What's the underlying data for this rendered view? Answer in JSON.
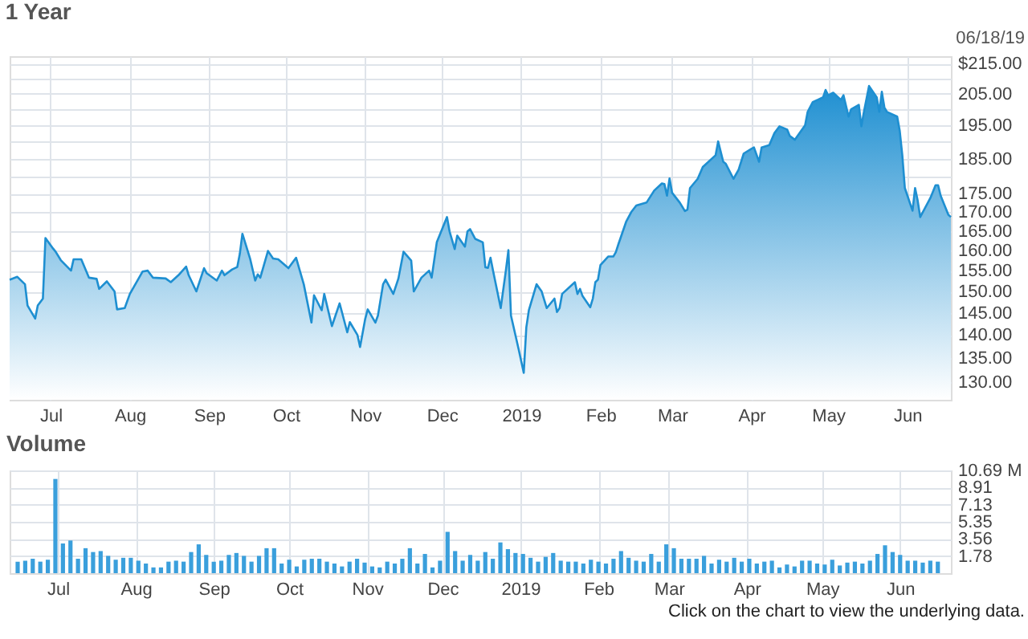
{
  "chart_data": [
    {
      "type": "area",
      "title": "1 Year",
      "color": "#1e8fd1",
      "log": true,
      "grid": true,
      "annotations": [
        "06/18/19"
      ],
      "x": [
        "2018-06-15",
        "2018-06-18",
        "2018-06-21",
        "2018-06-22",
        "2018-06-25",
        "2018-06-26",
        "2018-06-28",
        "2018-06-29",
        "2018-07-02",
        "2018-07-03",
        "2018-07-05",
        "2018-07-09",
        "2018-07-10",
        "2018-07-13",
        "2018-07-16",
        "2018-07-19",
        "2018-07-20",
        "2018-07-23",
        "2018-07-26",
        "2018-07-27",
        "2018-07-30",
        "2018-08-01",
        "2018-08-06",
        "2018-08-08",
        "2018-08-10",
        "2018-08-15",
        "2018-08-17",
        "2018-08-20",
        "2018-08-23",
        "2018-08-24",
        "2018-08-27",
        "2018-08-30",
        "2018-08-31",
        "2018-09-04",
        "2018-09-06",
        "2018-09-07",
        "2018-09-10",
        "2018-09-12",
        "2018-09-13",
        "2018-09-14",
        "2018-09-17",
        "2018-09-19",
        "2018-09-20",
        "2018-09-21",
        "2018-09-24",
        "2018-09-26",
        "2018-09-28",
        "2018-10-02",
        "2018-10-05",
        "2018-10-08",
        "2018-10-11",
        "2018-10-12",
        "2018-10-15",
        "2018-10-16",
        "2018-10-19",
        "2018-10-22",
        "2018-10-23",
        "2018-10-25",
        "2018-10-26",
        "2018-10-29",
        "2018-10-30",
        "2018-11-01",
        "2018-11-02",
        "2018-11-05",
        "2018-11-06",
        "2018-11-08",
        "2018-11-09",
        "2018-11-12",
        "2018-11-14",
        "2018-11-16",
        "2018-11-19",
        "2018-11-20",
        "2018-11-23",
        "2018-11-26",
        "2018-11-27",
        "2018-11-29",
        "2018-12-03",
        "2018-12-04",
        "2018-12-06",
        "2018-12-07",
        "2018-12-10",
        "2018-12-11",
        "2018-12-12",
        "2018-12-14",
        "2018-12-17",
        "2018-12-18",
        "2018-12-19",
        "2018-12-20",
        "2018-12-21",
        "2018-12-24",
        "2018-12-26",
        "2018-12-27",
        "2018-12-28",
        "2018-12-31",
        "2019-01-02",
        "2019-01-03",
        "2019-01-04",
        "2019-01-07",
        "2019-01-09",
        "2019-01-11",
        "2019-01-14",
        "2019-01-15",
        "2019-01-16",
        "2019-01-17",
        "2019-01-22",
        "2019-01-23",
        "2019-01-24",
        "2019-01-25",
        "2019-01-28",
        "2019-01-29",
        "2019-01-30",
        "2019-01-31",
        "2019-02-01",
        "2019-02-04",
        "2019-02-06",
        "2019-02-07",
        "2019-02-08",
        "2019-02-11",
        "2019-02-13",
        "2019-02-15",
        "2019-02-19",
        "2019-02-22",
        "2019-02-25",
        "2019-02-26",
        "2019-02-27",
        "2019-02-28",
        "2019-03-01",
        "2019-03-04",
        "2019-03-06",
        "2019-03-07",
        "2019-03-08",
        "2019-03-11",
        "2019-03-13",
        "2019-03-18",
        "2019-03-19",
        "2019-03-21",
        "2019-03-22",
        "2019-03-25",
        "2019-03-27",
        "2019-03-29",
        "2019-04-01",
        "2019-04-02",
        "2019-04-04",
        "2019-04-05",
        "2019-04-08",
        "2019-04-10",
        "2019-04-12",
        "2019-04-15",
        "2019-04-16",
        "2019-04-18",
        "2019-04-22",
        "2019-04-23",
        "2019-04-25",
        "2019-04-29",
        "2019-04-30",
        "2019-05-01",
        "2019-05-03",
        "2019-05-06",
        "2019-05-07",
        "2019-05-09",
        "2019-05-10",
        "2019-05-13",
        "2019-05-14",
        "2019-05-15",
        "2019-05-17",
        "2019-05-20",
        "2019-05-21",
        "2019-05-22",
        "2019-05-23",
        "2019-05-24",
        "2019-05-28",
        "2019-05-29",
        "2019-05-30",
        "2019-05-31",
        "2019-06-03",
        "2019-06-04",
        "2019-06-05",
        "2019-06-06",
        "2019-06-10",
        "2019-06-12",
        "2019-06-13",
        "2019-06-14",
        "2019-06-17",
        "2019-06-18"
      ],
      "values": [
        152.8,
        153.5,
        151.7,
        146.7,
        143.7,
        146.7,
        148.3,
        163.2,
        160.5,
        159.7,
        157.6,
        155,
        157.8,
        157.8,
        153.3,
        153,
        150.6,
        152.4,
        150,
        145.8,
        146.1,
        149.4,
        154.8,
        155,
        153.3,
        153.1,
        152.2,
        153.9,
        156,
        153.9,
        150,
        155.6,
        154.4,
        152.6,
        155,
        153.9,
        155.3,
        155.9,
        159.2,
        164.3,
        158,
        152.6,
        154.1,
        153.3,
        159.9,
        158,
        157.8,
        155.6,
        158.2,
        151.7,
        142.8,
        149.1,
        145.6,
        149.4,
        142,
        147.2,
        145,
        140.6,
        142.9,
        140,
        137.4,
        143.6,
        145.8,
        142.8,
        144.4,
        151.7,
        152.8,
        149.4,
        153.1,
        159.7,
        157.5,
        150,
        153.3,
        155,
        153.3,
        162.1,
        168.7,
        164.9,
        160.4,
        163.8,
        161,
        164.9,
        165.5,
        163,
        162.1,
        155.8,
        155.7,
        158.2,
        155,
        146.1,
        155,
        160.1,
        144.4,
        136.9,
        131.9,
        141.7,
        145.6,
        151.7,
        150,
        146.1,
        148.3,
        145.2,
        146.1,
        149.4,
        152.2,
        149.4,
        150.6,
        148.9,
        146.3,
        148.3,
        152.2,
        152.8,
        156.4,
        158.5,
        158.5,
        159.6,
        161.6,
        167.4,
        170,
        171.8,
        172.6,
        175.9,
        177.9,
        177.7,
        174.5,
        179.3,
        175.3,
        172.6,
        170.3,
        170.7,
        176.6,
        179.2,
        182.6,
        186,
        190.1,
        184.1,
        183.5,
        179.2,
        181.8,
        186.5,
        187.9,
        188.3,
        184.1,
        188.3,
        189,
        192.6,
        194.7,
        193.7,
        191.8,
        190.6,
        195,
        199.2,
        202.3,
        203.8,
        206.2,
        204.5,
        205.3,
        203,
        204.5,
        197.7,
        200,
        201.4,
        194.7,
        199.2,
        207.5,
        203.8,
        199.2,
        205.6,
        200.6,
        199.2,
        197.7,
        193.3,
        186,
        176.6,
        170.4,
        176.6,
        173.2,
        168.7,
        173.9,
        177.4,
        177.4,
        174.5,
        169.3,
        168.7
      ],
      "xlim": [
        "2018-06-15",
        "2019-06-18"
      ],
      "xticks": [
        {
          "value": "2018-07-01",
          "label": "Jul"
        },
        {
          "value": "2018-08-01",
          "label": "Aug"
        },
        {
          "value": "2018-09-01",
          "label": "Sep"
        },
        {
          "value": "2018-10-01",
          "label": "Oct"
        },
        {
          "value": "2018-11-01",
          "label": "Nov"
        },
        {
          "value": "2018-12-01",
          "label": "Dec"
        },
        {
          "value": "2019-01-01",
          "label": "2019"
        },
        {
          "value": "2019-02-01",
          "label": "Feb"
        },
        {
          "value": "2019-03-01",
          "label": "Mar"
        },
        {
          "value": "2019-04-01",
          "label": "Apr"
        },
        {
          "value": "2019-05-01",
          "label": "May"
        },
        {
          "value": "2019-06-01",
          "label": "Jun"
        }
      ],
      "ylim": [
        126.4,
        217.5
      ],
      "yticks": [
        {
          "value": 215,
          "label": "$215.00"
        },
        {
          "value": 210,
          "label": null
        },
        {
          "value": 205,
          "label": "205.00"
        },
        {
          "value": 200,
          "label": null
        },
        {
          "value": 195,
          "label": "195.00"
        },
        {
          "value": 190,
          "label": null
        },
        {
          "value": 185,
          "label": "185.00"
        },
        {
          "value": 180,
          "label": null
        },
        {
          "value": 175,
          "label": "175.00"
        },
        {
          "value": 170,
          "label": "170.00"
        },
        {
          "value": 165,
          "label": "165.00"
        },
        {
          "value": 160,
          "label": "160.00"
        },
        {
          "value": 155,
          "label": "155.00"
        },
        {
          "value": 150,
          "label": "150.00"
        },
        {
          "value": 145,
          "label": "145.00"
        },
        {
          "value": 140,
          "label": "140.00"
        },
        {
          "value": 135,
          "label": "135.00"
        },
        {
          "value": 130,
          "label": "130.00"
        }
      ]
    },
    {
      "type": "bar",
      "title": "Volume",
      "color": "#3a9fdc",
      "grid": true,
      "annotations": [
        "Click on the chart to view the underlying data."
      ],
      "x": [
        "2018-06-15",
        "2018-06-18",
        "2018-06-21",
        "2018-06-24",
        "2018-06-27",
        "2018-06-30",
        "2018-07-03",
        "2018-07-06",
        "2018-07-09",
        "2018-07-12",
        "2018-07-15",
        "2018-07-18",
        "2018-07-21",
        "2018-07-24",
        "2018-07-27",
        "2018-07-30",
        "2018-08-02",
        "2018-08-05",
        "2018-08-08",
        "2018-08-11",
        "2018-08-14",
        "2018-08-17",
        "2018-08-20",
        "2018-08-23",
        "2018-08-26",
        "2018-08-29",
        "2018-09-01",
        "2018-09-04",
        "2018-09-07",
        "2018-09-10",
        "2018-09-13",
        "2018-09-16",
        "2018-09-19",
        "2018-09-22",
        "2018-09-25",
        "2018-09-28",
        "2018-10-01",
        "2018-10-04",
        "2018-10-07",
        "2018-10-10",
        "2018-10-13",
        "2018-10-16",
        "2018-10-19",
        "2018-10-22",
        "2018-10-25",
        "2018-10-28",
        "2018-10-31",
        "2018-11-03",
        "2018-11-06",
        "2018-11-09",
        "2018-11-12",
        "2018-11-15",
        "2018-11-18",
        "2018-11-21",
        "2018-11-24",
        "2018-11-27",
        "2018-11-30",
        "2018-12-03",
        "2018-12-06",
        "2018-12-09",
        "2018-12-12",
        "2018-12-15",
        "2018-12-18",
        "2018-12-21",
        "2018-12-24",
        "2018-12-27",
        "2018-12-30",
        "2019-01-02",
        "2019-01-05",
        "2019-01-08",
        "2019-01-11",
        "2019-01-14",
        "2019-01-17",
        "2019-01-20",
        "2019-01-23",
        "2019-01-26",
        "2019-01-29",
        "2019-02-01",
        "2019-02-04",
        "2019-02-07",
        "2019-02-10",
        "2019-02-13",
        "2019-02-16",
        "2019-02-19",
        "2019-02-22",
        "2019-02-25",
        "2019-02-28",
        "2019-03-03",
        "2019-03-06",
        "2019-03-09",
        "2019-03-12",
        "2019-03-15",
        "2019-03-18",
        "2019-03-21",
        "2019-03-24",
        "2019-03-27",
        "2019-03-30",
        "2019-04-02",
        "2019-04-05",
        "2019-04-08",
        "2019-04-11",
        "2019-04-14",
        "2019-04-17",
        "2019-04-20",
        "2019-04-23",
        "2019-04-26",
        "2019-04-29",
        "2019-05-02",
        "2019-05-05",
        "2019-05-08",
        "2019-05-11",
        "2019-05-14",
        "2019-05-17",
        "2019-05-20",
        "2019-05-23",
        "2019-05-26",
        "2019-05-29",
        "2019-06-01",
        "2019-06-04",
        "2019-06-07",
        "2019-06-10",
        "2019-06-13",
        "2019-06-16"
      ],
      "values": [
        1.2,
        1.3,
        1.5,
        1.2,
        1.4,
        9.8,
        3.1,
        3.4,
        1.5,
        2.6,
        2.2,
        2.3,
        1.8,
        1.4,
        1.6,
        1.6,
        1.3,
        1.0,
        0.6,
        0.6,
        1.2,
        1.3,
        1.2,
        2.2,
        3.0,
        1.9,
        1.2,
        1.3,
        1.9,
        2.1,
        1.8,
        1.2,
        1.8,
        2.6,
        2.6,
        1.0,
        1.4,
        0.7,
        1.4,
        1.5,
        1.5,
        1.2,
        1.0,
        0.7,
        1.2,
        1.5,
        1.1,
        0.7,
        0.6,
        1.2,
        1.0,
        1.5,
        2.6,
        1.0,
        2.0,
        0.6,
        1.3,
        4.3,
        2.3,
        1.3,
        1.9,
        1.3,
        2.2,
        1.5,
        3.2,
        2.5,
        2.1,
        2.0,
        1.6,
        1.2,
        1.7,
        2.1,
        1.3,
        1.2,
        1.2,
        1.0,
        1.4,
        1.2,
        1.0,
        1.5,
        2.3,
        1.6,
        1.3,
        1.2,
        2.0,
        1.2,
        3.0,
        2.6,
        1.5,
        1.5,
        1.5,
        1.8,
        1.0,
        1.4,
        1.2,
        1.6,
        1.2,
        1.5,
        1.0,
        1.2,
        1.3,
        0.6,
        0.9,
        0.7,
        1.3,
        1.3,
        1.0,
        0.9,
        1.4,
        0.8,
        1.1,
        1.2,
        1.0,
        1.3,
        2.0,
        2.9,
        2.2,
        1.9,
        1.3,
        1.3,
        1.1,
        1.3,
        1.2
      ],
      "xlim": [
        "2018-06-15",
        "2019-06-18"
      ],
      "xticks": [
        {
          "value": "2018-07-01",
          "label": "Jul"
        },
        {
          "value": "2018-08-01",
          "label": "Aug"
        },
        {
          "value": "2018-09-01",
          "label": "Sep"
        },
        {
          "value": "2018-10-01",
          "label": "Oct"
        },
        {
          "value": "2018-11-01",
          "label": "Nov"
        },
        {
          "value": "2018-12-01",
          "label": "Dec"
        },
        {
          "value": "2019-01-01",
          "label": "2019"
        },
        {
          "value": "2019-02-01",
          "label": "Feb"
        },
        {
          "value": "2019-03-01",
          "label": "Mar"
        },
        {
          "value": "2019-04-01",
          "label": "Apr"
        },
        {
          "value": "2019-05-01",
          "label": "May"
        },
        {
          "value": "2019-06-01",
          "label": "Jun"
        }
      ],
      "ylim": [
        0,
        10.69
      ],
      "yticks": [
        1.78,
        3.56,
        5.35,
        7.13,
        8.91,
        {
          "value": 10.69,
          "label": "10.69 M"
        }
      ]
    }
  ]
}
